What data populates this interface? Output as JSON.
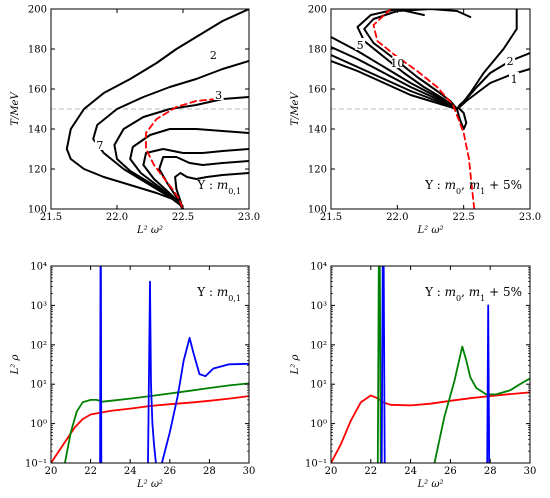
{
  "chart_data": [
    {
      "type": "line",
      "xlabel": "L² ω²",
      "ylabel": "T/MeV",
      "xlim": [
        21.5,
        23.0
      ],
      "ylim": [
        100,
        200
      ],
      "xticks": [
        "21.5",
        "22.0",
        "22.5",
        "23.0"
      ],
      "yticks": [
        "100",
        "120",
        "140",
        "160",
        "180",
        "200"
      ],
      "annotation": "Υ : m0,1",
      "reference_line": {
        "y": 150,
        "color": "#bbbbbb",
        "style": "dashed"
      },
      "series": [
        {
          "color": "#000000",
          "style": "solid",
          "x": [
            23.0,
            22.8,
            22.6,
            22.45,
            22.3,
            22.1,
            21.9,
            21.75,
            21.65,
            21.62,
            21.65,
            21.75,
            21.9,
            22.1,
            22.3,
            22.42,
            22.48,
            22.5
          ],
          "y": [
            200,
            194,
            186,
            180,
            173,
            165,
            158,
            150,
            140,
            130,
            125,
            120,
            116,
            112,
            108,
            105,
            102,
            100
          ]
        },
        {
          "color": "#000000",
          "style": "solid",
          "x": [
            23.0,
            22.8,
            22.6,
            22.4,
            22.2,
            22.0,
            21.85,
            21.82,
            21.9,
            22.05,
            22.25,
            22.4,
            22.48,
            22.5
          ],
          "y": [
            174,
            170,
            165,
            161,
            156,
            150,
            142,
            135,
            128,
            120,
            112,
            106,
            102,
            100
          ]
        },
        {
          "color": "#000000",
          "style": "solid",
          "x": [
            23.0,
            22.8,
            22.6,
            22.4,
            22.2,
            22.05,
            21.98,
            22.0,
            22.1,
            22.25,
            22.4,
            22.48,
            22.5
          ],
          "y": [
            156,
            155,
            152,
            150,
            146,
            140,
            132,
            125,
            119,
            113,
            107,
            102,
            100
          ]
        },
        {
          "color": "#000000",
          "style": "solid",
          "x": [
            23.0,
            22.8,
            22.6,
            22.4,
            22.25,
            22.12,
            22.1,
            22.18,
            22.3,
            22.42,
            22.48,
            22.5
          ],
          "y": [
            138,
            139,
            140,
            140,
            137,
            131,
            125,
            118,
            112,
            106,
            102,
            100
          ]
        },
        {
          "color": "#000000",
          "style": "solid",
          "x": [
            23.0,
            22.8,
            22.65,
            22.5,
            22.35,
            22.22,
            22.2,
            22.28,
            22.38,
            22.46,
            22.5
          ],
          "y": [
            130,
            129,
            128,
            128,
            130,
            128,
            122,
            115,
            109,
            104,
            100
          ]
        },
        {
          "color": "#000000",
          "style": "solid",
          "x": [
            23.0,
            22.8,
            22.65,
            22.55,
            22.45,
            22.35,
            22.32,
            22.38,
            22.45,
            22.5
          ],
          "y": [
            124,
            123,
            122,
            123,
            126,
            126,
            120,
            113,
            106,
            100
          ]
        },
        {
          "color": "#000000",
          "style": "solid",
          "x": [
            23.0,
            22.8,
            22.68,
            22.6,
            22.53,
            22.48,
            22.44,
            22.45,
            22.48,
            22.5
          ],
          "y": [
            118,
            117,
            116,
            115,
            116,
            118,
            116,
            110,
            104,
            100
          ]
        },
        {
          "color": "#ff0000",
          "style": "dashed",
          "x": [
            22.75,
            22.6,
            22.45,
            22.3,
            22.22,
            22.22,
            22.28,
            22.36,
            22.42,
            22.47,
            22.5
          ],
          "y": [
            155,
            154,
            151,
            145,
            138,
            130,
            122,
            115,
            110,
            105,
            100
          ]
        }
      ],
      "contour_labels": [
        {
          "text": "2",
          "x": 22.73,
          "y": 177
        },
        {
          "text": "3",
          "x": 22.77,
          "y": 157
        },
        {
          "text": "7",
          "x": 21.87,
          "y": 132
        }
      ]
    },
    {
      "type": "line",
      "xlabel": "L² ω²",
      "ylabel": "T/MeV",
      "xlim": [
        21.5,
        23.0
      ],
      "ylim": [
        100,
        200
      ],
      "xticks": [
        "21.5",
        "22.0",
        "22.5",
        "23.0"
      ],
      "yticks": [
        "100",
        "120",
        "140",
        "160",
        "180",
        "200"
      ],
      "annotation": "Υ : m0, m1 + 5%",
      "reference_line": {
        "y": 150,
        "color": "#bbbbbb",
        "style": "dashed"
      },
      "series": [
        {
          "color": "#000000",
          "style": "solid",
          "x": [
            23.0,
            22.85,
            22.7,
            22.6,
            22.52,
            22.47,
            22.45
          ],
          "y": [
            170,
            167,
            163,
            158,
            154,
            151,
            150
          ]
        },
        {
          "color": "#000000",
          "style": "solid",
          "x": [
            23.0,
            22.85,
            22.7,
            22.6,
            22.52,
            22.47,
            22.45
          ],
          "y": [
            178,
            174,
            168,
            161,
            155,
            152,
            150
          ]
        },
        {
          "color": "#000000",
          "style": "solid",
          "x": [
            22.9,
            22.9,
            22.8,
            22.65,
            22.55,
            22.48,
            22.45
          ],
          "y": [
            200,
            190,
            180,
            168,
            158,
            152,
            150
          ]
        },
        {
          "color": "#000000",
          "style": "solid",
          "x": [
            22.55,
            22.45,
            22.25,
            22.0,
            21.82,
            21.75,
            21.82,
            22.0,
            22.15,
            22.3,
            22.4,
            22.45
          ],
          "y": [
            196,
            199,
            200,
            199,
            195,
            190,
            183,
            174,
            166,
            159,
            154,
            150
          ]
        },
        {
          "color": "#000000",
          "style": "solid",
          "x": [
            22.2,
            22.0,
            21.8,
            21.7,
            21.75,
            21.9,
            22.05,
            22.2,
            22.35,
            22.45
          ],
          "y": [
            197,
            200,
            197,
            191,
            184,
            176,
            168,
            161,
            155,
            150
          ]
        },
        {
          "color": "#000000",
          "style": "solid",
          "x": [
            21.5,
            21.7,
            21.9,
            22.1,
            22.3,
            22.45
          ],
          "y": [
            186,
            179,
            171,
            163,
            156,
            150
          ]
        },
        {
          "color": "#000000",
          "style": "solid",
          "x": [
            21.5,
            21.7,
            21.9,
            22.1,
            22.3,
            22.45
          ],
          "y": [
            181,
            175,
            168,
            161,
            155,
            150
          ]
        },
        {
          "color": "#000000",
          "style": "solid",
          "x": [
            21.5,
            21.7,
            21.9,
            22.1,
            22.3,
            22.45
          ],
          "y": [
            177,
            171,
            165,
            159,
            154,
            150
          ]
        },
        {
          "color": "#000000",
          "style": "solid",
          "x": [
            21.5,
            21.7,
            21.9,
            22.1,
            22.3,
            22.45
          ],
          "y": [
            174,
            169,
            163,
            157,
            153,
            150
          ]
        },
        {
          "color": "#000000",
          "style": "solid",
          "x": [
            22.45,
            22.47,
            22.5,
            22.52,
            22.5,
            22.47
          ],
          "y": [
            150,
            145,
            140,
            143,
            148,
            150
          ]
        },
        {
          "color": "#ff0000",
          "style": "dashed",
          "x": [
            21.95,
            21.82,
            21.85,
            21.98,
            22.15,
            22.3,
            22.42,
            22.5,
            22.54,
            22.56,
            22.58
          ],
          "y": [
            200,
            192,
            184,
            177,
            169,
            161,
            152,
            138,
            125,
            112,
            100
          ]
        }
      ],
      "contour_labels": [
        {
          "text": "5",
          "x": 21.72,
          "y": 182
        },
        {
          "text": "10",
          "x": 22.0,
          "y": 173
        },
        {
          "text": "2",
          "x": 22.85,
          "y": 174
        },
        {
          "text": "1",
          "x": 22.88,
          "y": 165
        }
      ]
    },
    {
      "type": "line",
      "yscale": "log",
      "xlabel": "L² ω²",
      "ylabel": "L² ρ",
      "xlim": [
        20,
        30
      ],
      "ylim": [
        0.1,
        10000
      ],
      "xticks": [
        "20",
        "22",
        "24",
        "26",
        "28",
        "30"
      ],
      "yticks": [
        "10⁻¹",
        "10⁰",
        "10¹",
        "10²",
        "10³",
        "10⁴"
      ],
      "annotation": "Υ : m0,1",
      "series": [
        {
          "color": "#ff0000",
          "style": "solid",
          "x": [
            20.0,
            20.4,
            20.8,
            21.2,
            21.6,
            22.0,
            23.0,
            24.0,
            25.0,
            26.0,
            27.0,
            28.0,
            29.0,
            30.0
          ],
          "y": [
            0.1,
            0.2,
            0.4,
            0.8,
            1.3,
            1.7,
            2.1,
            2.4,
            2.8,
            3.1,
            3.4,
            3.8,
            4.3,
            5.0
          ]
        },
        {
          "color": "#008000",
          "style": "solid",
          "x": [
            20.7,
            21.0,
            21.3,
            21.6,
            22.0,
            22.3,
            22.6,
            23.0,
            24.0,
            25.0,
            26.0,
            27.0,
            28.0,
            29.0,
            30.0
          ],
          "y": [
            0.1,
            0.6,
            2.0,
            3.5,
            4.0,
            4.0,
            3.6,
            3.8,
            4.3,
            5.0,
            5.8,
            6.8,
            8.0,
            9.3,
            10.5
          ]
        },
        {
          "color": "#0000ff",
          "style": "solid",
          "x": [
            22.48,
            22.5,
            22.52,
            22.54
          ],
          "y": [
            0.1,
            10000,
            10000,
            0.1
          ]
        },
        {
          "color": "#0000ff",
          "style": "solid",
          "x": [
            24.9,
            25.0,
            25.05,
            25.12,
            25.2,
            25.3
          ],
          "y": [
            0.1,
            4000,
            10,
            1.0,
            0.3,
            0.1
          ]
        },
        {
          "color": "#0000ff",
          "style": "solid",
          "x": [
            25.6,
            26.0,
            26.4,
            26.7,
            27.0,
            27.2,
            27.5,
            27.8,
            28.2,
            29.0,
            30.0
          ],
          "y": [
            0.1,
            0.6,
            5,
            40,
            150,
            60,
            18,
            16,
            25,
            32,
            33
          ]
        }
      ]
    },
    {
      "type": "line",
      "yscale": "log",
      "xlabel": "L² ω²",
      "ylabel": "L² ρ",
      "xlim": [
        20,
        30
      ],
      "ylim": [
        0.1,
        10000
      ],
      "xticks": [
        "20",
        "22",
        "24",
        "26",
        "28",
        "30"
      ],
      "yticks": [
        "10⁻¹",
        "10⁰",
        "10¹",
        "10²",
        "10³",
        "10⁴"
      ],
      "annotation": "Υ : m0, m1 + 5%",
      "series": [
        {
          "color": "#ff0000",
          "style": "solid",
          "x": [
            20.0,
            20.5,
            21.0,
            21.5,
            22.0,
            22.3,
            22.6,
            23.0,
            24.0,
            25.0,
            26.0,
            27.0,
            28.0,
            29.0,
            30.0
          ],
          "y": [
            0.1,
            0.3,
            1.2,
            3.5,
            5.2,
            4.5,
            3.5,
            3.0,
            2.9,
            3.2,
            3.8,
            4.4,
            5.0,
            5.6,
            6.2
          ]
        },
        {
          "color": "#008000",
          "style": "solid",
          "x": [
            22.35,
            22.4,
            22.45,
            22.5
          ],
          "y": [
            0.1,
            10000,
            10000,
            0.1
          ]
        },
        {
          "color": "#0000ff",
          "style": "solid",
          "x": [
            22.55,
            22.6,
            22.65,
            22.7
          ],
          "y": [
            0.1,
            10000,
            10000,
            0.1
          ]
        },
        {
          "color": "#008000",
          "style": "solid",
          "x": [
            25.2,
            25.7,
            26.2,
            26.6,
            26.8,
            27.0,
            27.3,
            27.8,
            28.3,
            29.0,
            29.5,
            30.0
          ],
          "y": [
            0.1,
            1.5,
            12,
            90,
            40,
            15,
            8,
            5.5,
            5.5,
            7,
            10,
            14
          ]
        },
        {
          "color": "#0000ff",
          "style": "solid",
          "x": [
            27.85,
            27.9,
            27.95
          ],
          "y": [
            0.1,
            1000,
            0.1
          ]
        }
      ]
    }
  ]
}
